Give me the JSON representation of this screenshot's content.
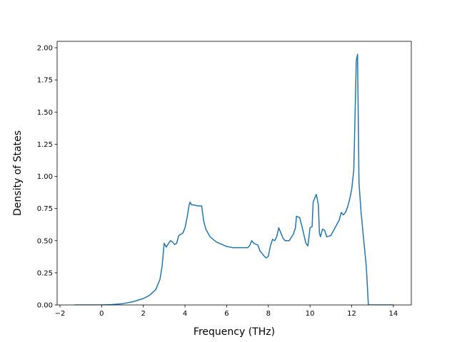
{
  "chart_data": {
    "type": "line",
    "xlabel": "Frequency (THz)",
    "ylabel": "Density of States",
    "x": [
      -1.3,
      0,
      0.5,
      1,
      1.5,
      2,
      2.3,
      2.6,
      2.8,
      2.9,
      3.0,
      3.1,
      3.3,
      3.4,
      3.5,
      3.6,
      3.7,
      3.8,
      3.9,
      4.0,
      4.1,
      4.2,
      4.25,
      4.3,
      4.5,
      4.6,
      4.8,
      4.9,
      5.0,
      5.2,
      5.5,
      6.0,
      6.3,
      7.0,
      7.1,
      7.2,
      7.3,
      7.5,
      7.6,
      7.8,
      7.9,
      8.0,
      8.1,
      8.2,
      8.3,
      8.4,
      8.5,
      8.6,
      8.7,
      8.8,
      9.0,
      9.2,
      9.3,
      9.35,
      9.5,
      9.6,
      9.7,
      9.8,
      9.9,
      10.0,
      10.1,
      10.15,
      10.3,
      10.4,
      10.45,
      10.5,
      10.6,
      10.7,
      10.8,
      11.0,
      11.2,
      11.4,
      11.5,
      11.6,
      11.7,
      11.8,
      11.9,
      12.0,
      12.1,
      12.15,
      12.22,
      12.28,
      12.35,
      12.45,
      12.55,
      12.7,
      12.8,
      13.0,
      14.0
    ],
    "values": [
      0,
      0,
      0.003,
      0.01,
      0.025,
      0.05,
      0.075,
      0.12,
      0.2,
      0.3,
      0.48,
      0.45,
      0.5,
      0.49,
      0.47,
      0.48,
      0.54,
      0.55,
      0.56,
      0.6,
      0.68,
      0.78,
      0.8,
      0.78,
      0.775,
      0.77,
      0.77,
      0.65,
      0.59,
      0.53,
      0.49,
      0.455,
      0.445,
      0.445,
      0.46,
      0.5,
      0.48,
      0.465,
      0.42,
      0.38,
      0.365,
      0.38,
      0.46,
      0.51,
      0.5,
      0.53,
      0.6,
      0.56,
      0.52,
      0.5,
      0.5,
      0.55,
      0.6,
      0.69,
      0.68,
      0.62,
      0.55,
      0.48,
      0.46,
      0.6,
      0.61,
      0.8,
      0.86,
      0.78,
      0.56,
      0.53,
      0.59,
      0.58,
      0.53,
      0.54,
      0.6,
      0.66,
      0.72,
      0.7,
      0.72,
      0.76,
      0.82,
      0.9,
      1.05,
      1.4,
      1.9,
      1.95,
      0.95,
      0.72,
      0.55,
      0.3,
      0,
      0,
      0
    ],
    "color": "#1f77b4",
    "xlim": [
      -2.137,
      14.86
    ],
    "ylim": [
      0,
      2.05
    ],
    "xticks": [
      {
        "value": -2,
        "label": "−2"
      },
      0,
      2,
      4,
      6,
      8,
      10,
      12,
      14
    ],
    "yticks": [
      {
        "value": 0,
        "label": "0.00"
      },
      {
        "value": 0.25,
        "label": "0.25"
      },
      {
        "value": 0.5,
        "label": "0.50"
      },
      {
        "value": 0.75,
        "label": "0.75"
      },
      {
        "value": 1,
        "label": "1.00"
      },
      {
        "value": 1.25,
        "label": "1.25"
      },
      {
        "value": 1.5,
        "label": "1.50"
      },
      {
        "value": 1.75,
        "label": "1.75"
      },
      {
        "value": 2,
        "label": "2.00"
      }
    ],
    "grid": false
  }
}
